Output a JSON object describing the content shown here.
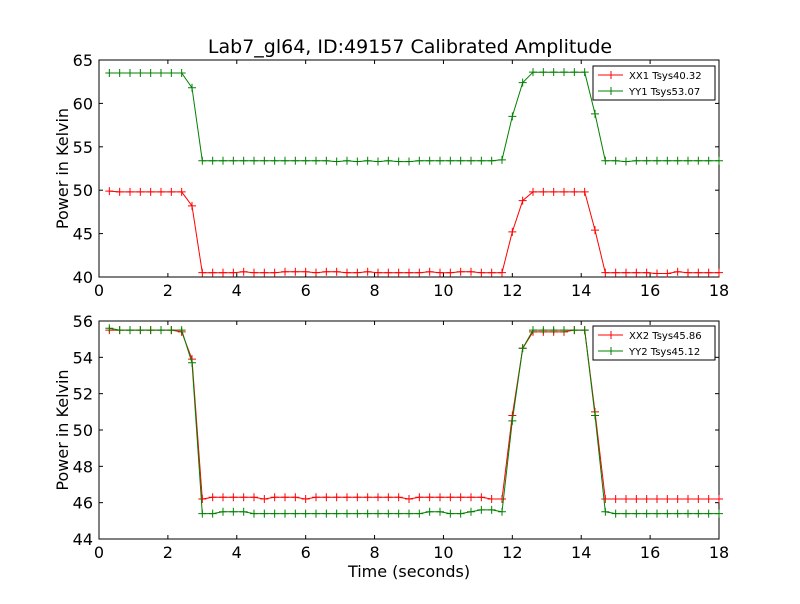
{
  "title": "Lab7_gl64, ID:49157 Calibrated Amplitude",
  "chart_data": [
    {
      "type": "line",
      "title": "Lab7_gl64, ID:49157 Calibrated Amplitude",
      "xlabel": "",
      "ylabel": "Power in Kelvin",
      "xlim": [
        0,
        18
      ],
      "ylim": [
        40,
        65
      ],
      "xticks": [
        0,
        2,
        4,
        6,
        8,
        10,
        12,
        14,
        16,
        18
      ],
      "yticks": [
        40,
        45,
        50,
        55,
        60,
        65
      ],
      "grid": false,
      "legend_position": "top-right",
      "x": [
        0.3,
        0.6,
        0.9,
        1.2,
        1.5,
        1.8,
        2.1,
        2.4,
        2.7,
        3.0,
        3.3,
        3.6,
        3.9,
        4.2,
        4.5,
        4.8,
        5.1,
        5.4,
        5.7,
        6.0,
        6.3,
        6.6,
        6.9,
        7.2,
        7.5,
        7.8,
        8.1,
        8.4,
        8.7,
        9.0,
        9.3,
        9.6,
        9.9,
        10.2,
        10.5,
        10.8,
        11.1,
        11.4,
        11.7,
        12.0,
        12.3,
        12.6,
        12.9,
        13.2,
        13.5,
        13.8,
        14.1,
        14.4,
        14.7,
        15.0,
        15.3,
        15.6,
        15.9,
        16.2,
        16.5,
        16.8,
        17.1,
        17.4,
        17.7,
        18.0
      ],
      "series": [
        {
          "name": "XX1 Tsys40.32",
          "color": "#ff0000",
          "values": [
            49.9,
            49.8,
            49.8,
            49.8,
            49.8,
            49.8,
            49.8,
            49.8,
            48.2,
            40.5,
            40.5,
            40.5,
            40.5,
            40.6,
            40.5,
            40.5,
            40.5,
            40.6,
            40.6,
            40.6,
            40.5,
            40.6,
            40.6,
            40.5,
            40.5,
            40.6,
            40.5,
            40.5,
            40.5,
            40.5,
            40.5,
            40.6,
            40.5,
            40.5,
            40.6,
            40.6,
            40.5,
            40.5,
            40.5,
            45.2,
            48.8,
            49.8,
            49.8,
            49.8,
            49.8,
            49.8,
            49.8,
            45.4,
            40.5,
            40.5,
            40.5,
            40.5,
            40.5,
            40.4,
            40.4,
            40.6,
            40.5,
            40.5,
            40.5,
            40.5
          ]
        },
        {
          "name": "YY1 Tsys53.07",
          "color": "#008000",
          "values": [
            63.5,
            63.5,
            63.5,
            63.5,
            63.5,
            63.5,
            63.5,
            63.5,
            61.8,
            53.4,
            53.4,
            53.4,
            53.4,
            53.4,
            53.4,
            53.4,
            53.4,
            53.4,
            53.4,
            53.4,
            53.4,
            53.4,
            53.3,
            53.4,
            53.3,
            53.4,
            53.3,
            53.4,
            53.3,
            53.3,
            53.4,
            53.4,
            53.4,
            53.4,
            53.4,
            53.4,
            53.4,
            53.4,
            53.5,
            58.5,
            62.4,
            63.6,
            63.6,
            63.6,
            63.6,
            63.6,
            63.6,
            58.8,
            53.4,
            53.4,
            53.3,
            53.4,
            53.4,
            53.4,
            53.4,
            53.4,
            53.4,
            53.4,
            53.4,
            53.4
          ]
        }
      ]
    },
    {
      "type": "line",
      "title": "",
      "xlabel": "Time (seconds)",
      "ylabel": "Power in Kelvin",
      "xlim": [
        0,
        18
      ],
      "ylim": [
        44,
        56
      ],
      "xticks": [
        0,
        2,
        4,
        6,
        8,
        10,
        12,
        14,
        16,
        18
      ],
      "yticks": [
        44,
        46,
        48,
        50,
        52,
        54,
        56
      ],
      "grid": false,
      "legend_position": "top-right",
      "x": [
        0.3,
        0.6,
        0.9,
        1.2,
        1.5,
        1.8,
        2.1,
        2.4,
        2.7,
        3.0,
        3.3,
        3.6,
        3.9,
        4.2,
        4.5,
        4.8,
        5.1,
        5.4,
        5.7,
        6.0,
        6.3,
        6.6,
        6.9,
        7.2,
        7.5,
        7.8,
        8.1,
        8.4,
        8.7,
        9.0,
        9.3,
        9.6,
        9.9,
        10.2,
        10.5,
        10.8,
        11.1,
        11.4,
        11.7,
        12.0,
        12.3,
        12.6,
        12.9,
        13.2,
        13.5,
        13.8,
        14.1,
        14.4,
        14.7,
        15.0,
        15.3,
        15.6,
        15.9,
        16.2,
        16.5,
        16.8,
        17.1,
        17.4,
        17.7,
        18.0
      ],
      "series": [
        {
          "name": "XX2 Tsys45.86",
          "color": "#ff0000",
          "values": [
            55.5,
            55.5,
            55.5,
            55.5,
            55.5,
            55.5,
            55.5,
            55.4,
            53.9,
            46.2,
            46.3,
            46.3,
            46.3,
            46.3,
            46.3,
            46.2,
            46.3,
            46.3,
            46.3,
            46.2,
            46.3,
            46.3,
            46.3,
            46.3,
            46.3,
            46.3,
            46.3,
            46.3,
            46.3,
            46.2,
            46.3,
            46.3,
            46.3,
            46.3,
            46.3,
            46.3,
            46.3,
            46.2,
            46.2,
            50.8,
            54.5,
            55.4,
            55.4,
            55.4,
            55.4,
            55.5,
            55.5,
            51.0,
            46.2,
            46.2,
            46.2,
            46.2,
            46.2,
            46.2,
            46.2,
            46.2,
            46.2,
            46.2,
            46.2,
            46.2
          ]
        },
        {
          "name": "YY2 Tsys45.12",
          "color": "#008000",
          "values": [
            55.6,
            55.5,
            55.5,
            55.5,
            55.5,
            55.5,
            55.5,
            55.5,
            53.7,
            45.4,
            45.4,
            45.5,
            45.5,
            45.5,
            45.4,
            45.4,
            45.4,
            45.4,
            45.4,
            45.4,
            45.4,
            45.4,
            45.4,
            45.4,
            45.4,
            45.4,
            45.4,
            45.4,
            45.4,
            45.4,
            45.4,
            45.5,
            45.5,
            45.4,
            45.4,
            45.5,
            45.6,
            45.6,
            45.5,
            50.5,
            54.5,
            55.5,
            55.5,
            55.5,
            55.5,
            55.5,
            55.5,
            50.8,
            45.5,
            45.4,
            45.4,
            45.4,
            45.4,
            45.4,
            45.4,
            45.4,
            45.4,
            45.4,
            45.4,
            45.4
          ]
        }
      ]
    }
  ]
}
